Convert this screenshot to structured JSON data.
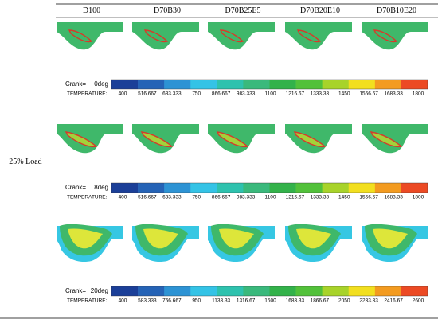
{
  "columns": [
    "D100",
    "D70B30",
    "D70B25E5",
    "D70B20E10",
    "D70B10E20"
  ],
  "row_label": "25% Load",
  "legends": [
    {
      "crank": "Crank=",
      "angle": "0deg",
      "quantity": "TEMPERATURE:",
      "ticks": [
        "400",
        "516.667",
        "633.333",
        "750",
        "866.667",
        "983.333",
        "1100",
        "1216.67",
        "1333.33",
        "1450",
        "1566.67",
        "1683.33",
        "1800"
      ]
    },
    {
      "crank": "Crank=",
      "angle": "8deg",
      "quantity": "TEMPERATURE:",
      "ticks": [
        "400",
        "516.667",
        "633.333",
        "750",
        "866.667",
        "983.333",
        "1100",
        "1216.67",
        "1333.33",
        "1450",
        "1566.67",
        "1683.33",
        "1800"
      ]
    },
    {
      "crank": "Crank=",
      "angle": "20deg",
      "quantity": "TEMPERATURE:",
      "ticks": [
        "400",
        "583.333",
        "766.667",
        "950",
        "1133.33",
        "1316.67",
        "1500",
        "1683.33",
        "1866.67",
        "2050",
        "2233.33",
        "2416.67",
        "2600"
      ]
    }
  ]
}
